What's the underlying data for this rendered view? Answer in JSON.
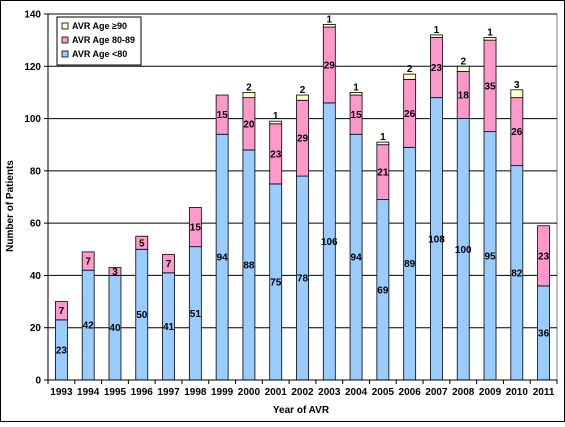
{
  "chart_data": {
    "type": "bar",
    "stacked": true,
    "title": "",
    "xlabel": "Year of AVR",
    "ylabel": "Number of Patients",
    "ylim": [
      0,
      140
    ],
    "y_ticks": [
      "0",
      "20",
      "40",
      "60",
      "80",
      "100",
      "120",
      "140"
    ],
    "grid": "horizontal",
    "legend_position": "top-left",
    "categories": [
      "1993",
      "1994",
      "1995",
      "1996",
      "1997",
      "1998",
      "1999",
      "2000",
      "2001",
      "2002",
      "2003",
      "2004",
      "2005",
      "2006",
      "2007",
      "2008",
      "2009",
      "2010",
      "2011"
    ],
    "series": [
      {
        "name": "AVR Age <80",
        "color": "#99ccff",
        "values": [
          23,
          42,
          40,
          50,
          41,
          51,
          94,
          88,
          75,
          78,
          106,
          94,
          69,
          89,
          108,
          100,
          95,
          82,
          36
        ],
        "labels": [
          "23",
          "42",
          "40",
          "50",
          "41",
          "51",
          "94",
          "88",
          "75",
          "78",
          "106",
          "94",
          "69",
          "89",
          "108",
          "100",
          "95",
          "82",
          "36"
        ]
      },
      {
        "name": "AVR Age 80-89",
        "color": "#ff99cc",
        "values": [
          7,
          7,
          3,
          5,
          7,
          15,
          15,
          20,
          23,
          29,
          29,
          15,
          21,
          26,
          23,
          18,
          35,
          26,
          23
        ],
        "labels": [
          "7",
          "7",
          "3",
          "5",
          "7",
          "15",
          "15",
          "20",
          "23",
          "29",
          "29",
          "15",
          "21",
          "26",
          "23",
          "18",
          "35",
          "26",
          "23"
        ]
      },
      {
        "name": "AVR Age ≥90",
        "color": "#ffffcc",
        "values": [
          0,
          0,
          0,
          0,
          0,
          0,
          0,
          2,
          1,
          2,
          1,
          1,
          1,
          2,
          1,
          2,
          1,
          3,
          0
        ],
        "labels": [
          "",
          "",
          "",
          "",
          "",
          "",
          "",
          "2",
          "1",
          "2",
          "1",
          "1",
          "1",
          "2",
          "1",
          "2",
          "1",
          "3",
          ""
        ]
      }
    ],
    "legend_order": [
      2,
      1,
      0
    ]
  }
}
